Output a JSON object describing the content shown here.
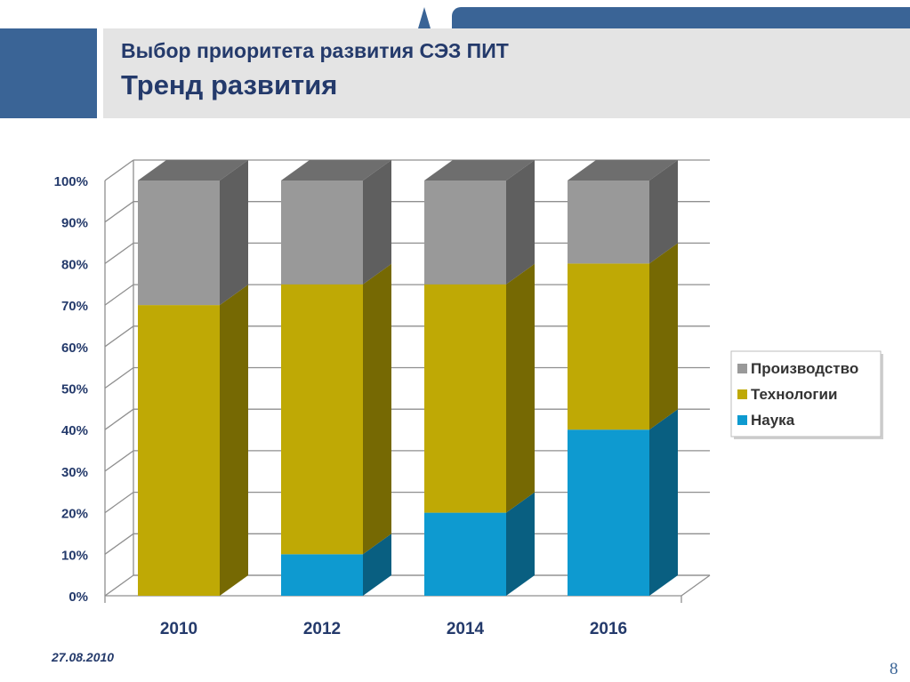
{
  "header": {
    "title": "Выбор приоритета развития СЭЗ ПИТ",
    "subtitle": "Тренд развития"
  },
  "footer": {
    "date": "27.08.2010",
    "page": "8"
  },
  "colors": {
    "header_blue": "#3a6496",
    "title_text": "#243a6b",
    "header_band": "#e4e4e4"
  },
  "chart_data": {
    "type": "bar",
    "stacked": true,
    "style": "3d",
    "categories": [
      "2010",
      "2012",
      "2014",
      "2016"
    ],
    "series": [
      {
        "name": "Наука",
        "values": [
          0,
          10,
          20,
          40
        ],
        "color": "#0e9ad0"
      },
      {
        "name": "Технологии",
        "values": [
          70,
          65,
          55,
          40
        ],
        "color": "#bfa905"
      },
      {
        "name": "Производство",
        "values": [
          30,
          25,
          25,
          20
        ],
        "color": "#999999"
      }
    ],
    "yaxis": {
      "min": 0,
      "max": 100,
      "step": 10,
      "tick_labels": [
        "0%",
        "10%",
        "20%",
        "30%",
        "40%",
        "50%",
        "60%",
        "70%",
        "80%",
        "90%",
        "100%"
      ]
    },
    "grid": true,
    "legend": {
      "position": "right",
      "order": [
        "Производство",
        "Технологии",
        "Наука"
      ]
    }
  }
}
